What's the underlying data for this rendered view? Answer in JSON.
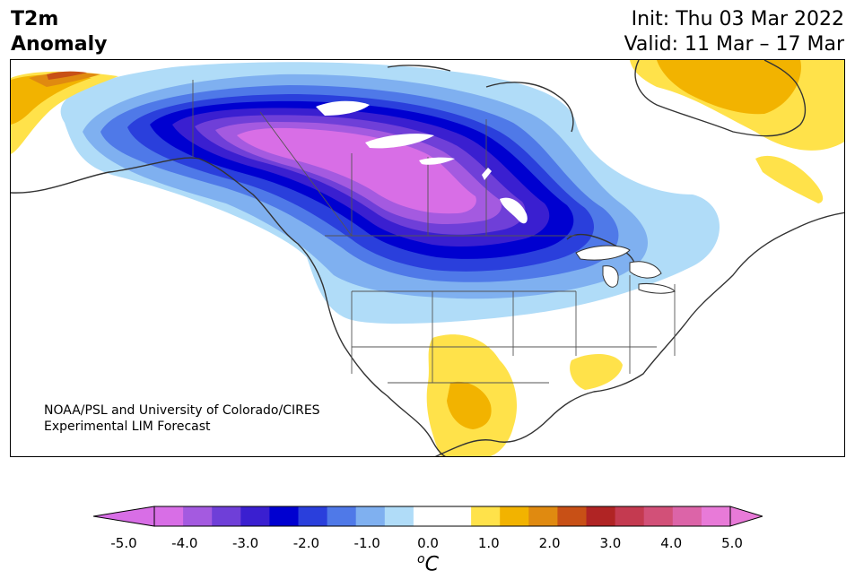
{
  "header": {
    "title_line1": "T2m",
    "title_line2": "Anomaly",
    "init": "Init: Thu 03 Mar 2022",
    "valid": "Valid: 11 Mar – 17 Mar"
  },
  "credit": {
    "line1": "NOAA/PSL and University of Colorado/CIRES",
    "line2": "Experimental LIM Forecast"
  },
  "colorbar": {
    "unit_base": "C",
    "unit_sup": "o",
    "ticks": [
      "-5.0",
      "-4.0",
      "-3.0",
      "-2.0",
      "-1.0",
      "0.0",
      "1.0",
      "2.0",
      "3.0",
      "4.0",
      "5.0"
    ],
    "colors": [
      "#d86ee6",
      "#a45ae0",
      "#6f3fd8",
      "#3a1fd0",
      "#0000d0",
      "#2a3fdc",
      "#4f79e8",
      "#7fb0f0",
      "#b0dcf8",
      "#ffffff",
      "#ffffff",
      "#ffe24a",
      "#f2b300",
      "#e08a10",
      "#c85016",
      "#b02424",
      "#c43a50",
      "#d25078",
      "#dc64a8",
      "#e87ad8"
    ],
    "under_color": "#d86ee6",
    "over_color": "#e87ad8"
  },
  "map": {
    "region": "North America",
    "anomaly_colors": {
      "magenta": "#d86ee6",
      "violet": "#a45ae0",
      "indigo": "#6f3fd8",
      "deep_blue": "#3a1fd0",
      "blue": "#0000d0",
      "mid_blue": "#2a3fdc",
      "light_blue": "#4f79e8",
      "pale_blue": "#7fb0f0",
      "sky": "#b0dcf8",
      "yellow": "#ffe24a",
      "gold": "#f2b300",
      "orange": "#e08a10",
      "red_orange": "#c85016",
      "red": "#b02424"
    }
  }
}
